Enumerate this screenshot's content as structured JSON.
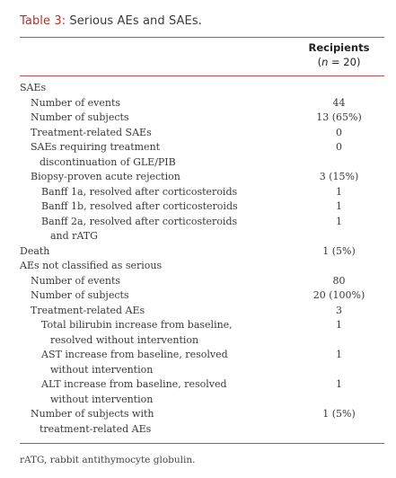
{
  "caption": {
    "label": "Table 3:",
    "text": " Serious AEs and SAEs."
  },
  "header": {
    "col_title": "Recipients",
    "col_n_open": "(",
    "col_n_var": "n",
    "col_n_close": " = 20)"
  },
  "rows": [
    {
      "indent": 0,
      "lines": [
        "SAEs"
      ],
      "value": ""
    },
    {
      "indent": 1,
      "lines": [
        "Number of events"
      ],
      "value": "44"
    },
    {
      "indent": 1,
      "lines": [
        "Number of subjects"
      ],
      "value": "13 (65%)"
    },
    {
      "indent": 1,
      "lines": [
        "Treatment-related SAEs"
      ],
      "value": "0"
    },
    {
      "indent": 1,
      "lines": [
        "SAEs requiring treatment",
        "discontinuation of GLE/PIB"
      ],
      "value": "0"
    },
    {
      "indent": 1,
      "lines": [
        "Biopsy-proven acute rejection"
      ],
      "value": "3 (15%)"
    },
    {
      "indent": 2,
      "lines": [
        "Banff 1a, resolved after corticosteroids"
      ],
      "value": "1"
    },
    {
      "indent": 2,
      "lines": [
        "Banff 1b, resolved after corticosteroids"
      ],
      "value": "1"
    },
    {
      "indent": 2,
      "lines": [
        "Banff 2a, resolved after corticosteroids",
        "and rATG"
      ],
      "value": "1"
    },
    {
      "indent": 0,
      "lines": [
        "Death"
      ],
      "value": "1 (5%)"
    },
    {
      "indent": 0,
      "lines": [
        "AEs not classified as serious"
      ],
      "value": ""
    },
    {
      "indent": 1,
      "lines": [
        "Number of events"
      ],
      "value": "80"
    },
    {
      "indent": 1,
      "lines": [
        "Number of subjects"
      ],
      "value": "20 (100%)"
    },
    {
      "indent": 1,
      "lines": [
        "Treatment-related AEs"
      ],
      "value": "3"
    },
    {
      "indent": 2,
      "lines": [
        "Total bilirubin increase from baseline,",
        "resolved without intervention"
      ],
      "value": "1"
    },
    {
      "indent": 2,
      "lines": [
        "AST increase from baseline, resolved",
        "without intervention"
      ],
      "value": "1"
    },
    {
      "indent": 2,
      "lines": [
        "ALT increase from baseline, resolved",
        "without intervention"
      ],
      "value": "1"
    },
    {
      "indent": 1,
      "lines": [
        "Number of subjects with",
        "treatment-related AEs"
      ],
      "value": "1 (5%)"
    }
  ],
  "footnote": "rATG, rabbit antithymocyte globulin.",
  "colors": {
    "accent": "#b0342e",
    "rule": "#c0504d",
    "text": "#3a3a3a"
  }
}
